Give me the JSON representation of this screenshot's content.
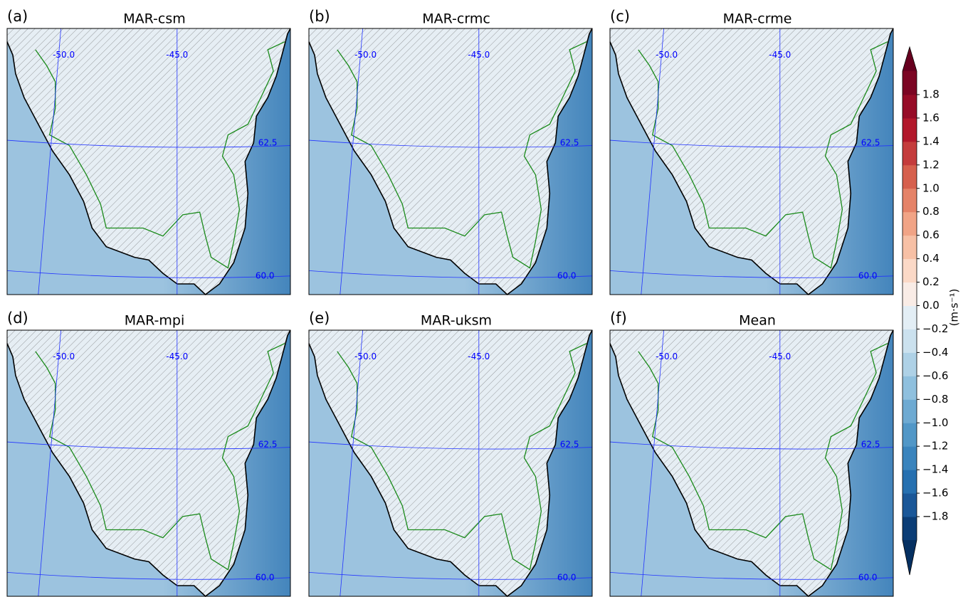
{
  "panels": [
    {
      "letter": "(a)",
      "title": "MAR-csm",
      "labels": [
        "-50.0",
        "-45.0",
        "62.5",
        "60.0"
      ]
    },
    {
      "letter": "(b)",
      "title": "MAR-crmc",
      "labels": [
        "-50.0",
        "-45.0",
        "62.5",
        "60.0"
      ]
    },
    {
      "letter": "(c)",
      "title": "MAR-crme",
      "labels": [
        "-50.0",
        "-45.0",
        "62.5",
        "60.0"
      ]
    },
    {
      "letter": "(d)",
      "title": "MAR-mpi",
      "labels": [
        "-50.0",
        "-45.0",
        "62.5",
        "60.0"
      ]
    },
    {
      "letter": "(e)",
      "title": "MAR-uksm",
      "labels": [
        "-50.0",
        "-45.0",
        "62.5",
        "60.0"
      ]
    },
    {
      "letter": "(f)",
      "title": "Mean",
      "labels": [
        "-50.0",
        "-45.0",
        "62.5",
        "60.0"
      ]
    }
  ],
  "colorbar": {
    "lim": [
      -2,
      2
    ],
    "under": "#053061",
    "over": "#67001f",
    "colors": [
      "#0b3d76",
      "#1a5798",
      "#2670b0",
      "#3a84bd",
      "#5197c7",
      "#6eaad2",
      "#8fc0de",
      "#aed1e6",
      "#cbe1ee",
      "#e3eef5",
      "#f9ece6",
      "#fbd9c7",
      "#f7c0a5",
      "#f1a486",
      "#e58368",
      "#d6604d",
      "#c43c3c",
      "#b2182b",
      "#960c27",
      "#7b0523"
    ],
    "ticks": [
      1.8,
      1.6,
      1.4,
      1.2,
      {
        "value": 1,
        "label": "1.0"
      },
      0.8,
      0.6,
      0.4,
      0.2,
      {
        "value": 0,
        "label": "0.0"
      },
      {
        "value": -0.2,
        "label": "−0.2"
      },
      {
        "value": -0.4,
        "label": "−0.4"
      },
      {
        "value": -0.6,
        "label": "−0.6"
      },
      {
        "value": -0.8,
        "label": "−0.8"
      },
      {
        "value": -1,
        "label": "−1.0"
      },
      {
        "value": -1.2,
        "label": "−1.2"
      },
      {
        "value": -1.4,
        "label": "−1.4"
      },
      {
        "value": -1.6,
        "label": "−1.6"
      },
      {
        "value": -1.8,
        "label": "−1.8"
      }
    ],
    "label": "(m·s⁻¹)"
  }
}
